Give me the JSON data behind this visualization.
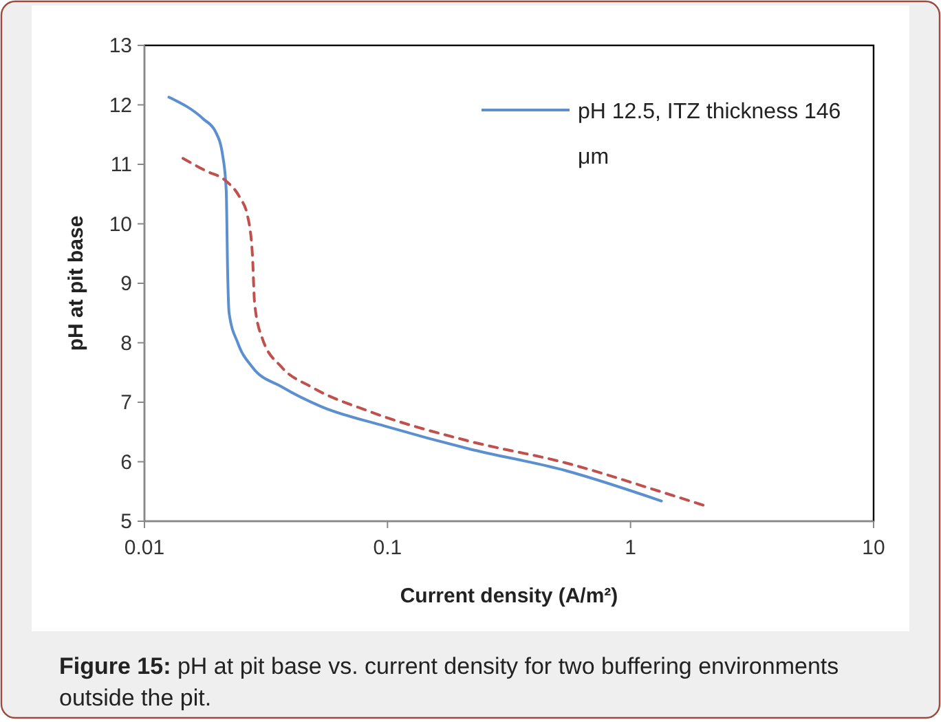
{
  "chart_data": {
    "type": "line",
    "xlabel": "Current density (A/m²)",
    "ylabel": "pH at pit base",
    "log": "x",
    "xlim": [
      0.01,
      10
    ],
    "xticks": [
      0.01,
      0.1,
      1,
      10
    ],
    "ylim": [
      5,
      13
    ],
    "yticks": [
      5,
      6,
      7,
      8,
      9,
      10,
      11,
      12,
      13
    ],
    "grid": false,
    "legend": "top right",
    "marker": "none",
    "series": [
      {
        "name": "pH 12.5, ITZ thickness 146 μm",
        "color": "#5b8fd0",
        "line_style": "solid",
        "x": [
          0.0126,
          0.0175,
          0.0196,
          0.021,
          0.0217,
          0.022,
          0.0223,
          0.0242,
          0.0278,
          0.0367,
          0.0532,
          0.0975,
          0.215,
          0.542,
          1.34
        ],
        "values": [
          12.13,
          11.76,
          11.55,
          11.14,
          10.56,
          9.16,
          8.5,
          8.0,
          7.59,
          7.26,
          6.93,
          6.6,
          6.22,
          5.85,
          5.34
        ]
      },
      {
        "color": "#c0504d",
        "line_style": "dashed",
        "x": [
          0.0144,
          0.0179,
          0.0215,
          0.0247,
          0.0265,
          0.0278,
          0.0284,
          0.0305,
          0.0367,
          0.0485,
          0.085,
          0.215,
          0.542,
          1.37,
          1.99
        ],
        "values": [
          11.1,
          10.89,
          10.73,
          10.44,
          10.15,
          9.49,
          8.66,
          8.08,
          7.59,
          7.26,
          6.84,
          6.35,
          5.98,
          5.48,
          5.27
        ]
      }
    ],
    "annotations": [
      "Figure 15: pH at pit base vs. current density for two buffering environments outside the pit."
    ]
  }
}
